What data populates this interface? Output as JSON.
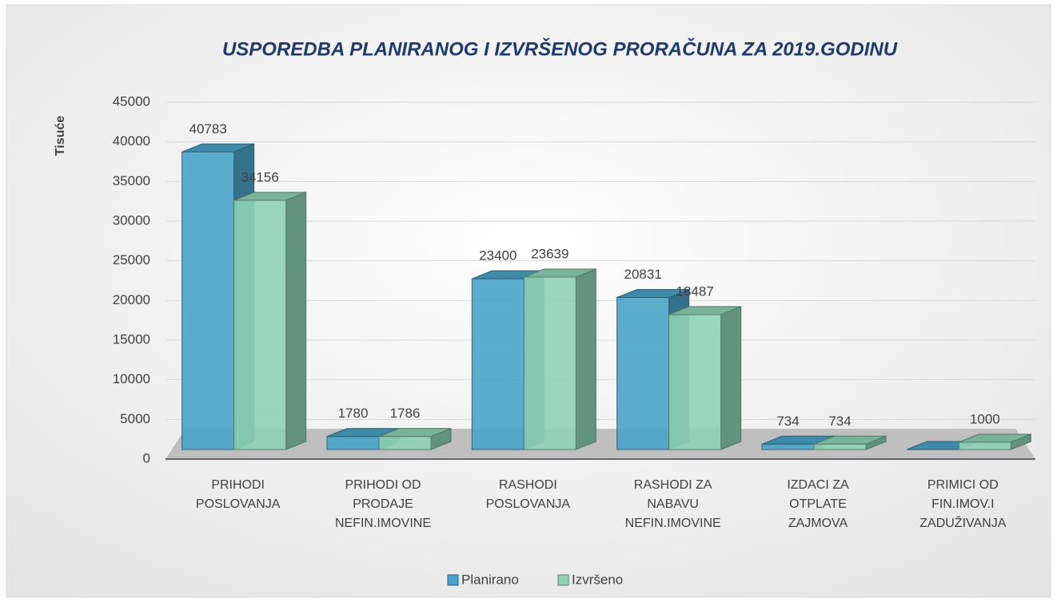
{
  "chart_data": {
    "type": "bar3d",
    "title": "USPOREDBA PLANIRANOG I IZVRŠENOG PRORAČUNA ZA 2019.GODINU",
    "y_label": "Tisuće",
    "categories": [
      [
        "PRIHODI",
        "POSLOVANJA"
      ],
      [
        "PRIHODI OD",
        "PRODAJE",
        "NEFIN.IMOVINE"
      ],
      [
        "RASHODI",
        "POSLOVANJA"
      ],
      [
        "RASHODI ZA",
        "NABAVU",
        "NEFIN.IMOVINE"
      ],
      [
        "IZDACI ZA",
        "OTPLATE",
        "ZAJMOVA"
      ],
      [
        "PRIMICI OD",
        "FIN.IMOV.I",
        "ZADUŽIVANJA"
      ]
    ],
    "series": [
      {
        "name": "Planirano",
        "color": "#4aa3c8",
        "values": [
          40783,
          1780,
          23400,
          20831,
          734,
          0
        ],
        "value_labels": [
          "40783",
          "1780",
          "23400",
          "20831",
          "734",
          null
        ]
      },
      {
        "name": "Izvršeno",
        "color": "#8ed2b6",
        "values": [
          34156,
          1786,
          23639,
          18487,
          734,
          1000
        ],
        "value_labels": [
          "34156",
          "1786",
          "23639",
          "18487",
          "734",
          "1000"
        ]
      }
    ],
    "ylim": [
      0,
      45000
    ],
    "yticks": [
      0,
      5000,
      10000,
      15000,
      20000,
      25000,
      30000,
      35000,
      40000,
      45000
    ],
    "grid": true,
    "legend": "bottom"
  }
}
